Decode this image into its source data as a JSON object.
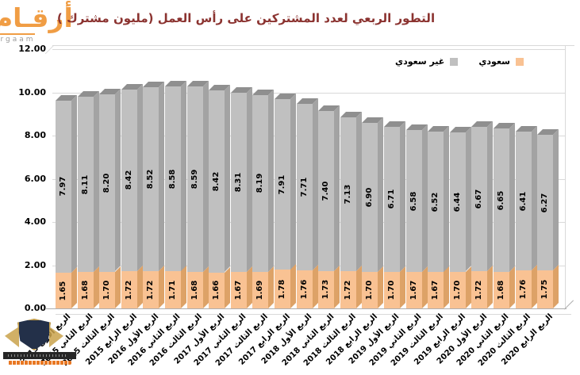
{
  "logo": {
    "arabic": "أرقـام",
    "latin": "argaam"
  },
  "header": {
    "title": "التطور الربعي لعدد المشتركين على رأس العمل (مليون مشترك )",
    "title_color": "#8b3330"
  },
  "legend": {
    "non_saudi_label": "غير سعودي",
    "saudi_label": "سعودي"
  },
  "colors": {
    "saudi_front": "#f9c293",
    "saudi_side": "#dda267",
    "saudi_top": "#e7b077",
    "non_saudi_front": "#c0c0c0",
    "non_saudi_side": "#a3a3a3",
    "non_saudi_top": "#8f8f8f",
    "gridline": "#d9d9d9",
    "baseline": "#aeaeae",
    "logo_orange": "#f09d44"
  },
  "chart_data": {
    "type": "bar",
    "stacked": true,
    "title": "التطور الربعي لعدد المشتركين على رأس العمل (مليون مشترك )",
    "categories": [
      "الربع الأول 2015",
      "الربع الثاني 2015",
      "الربع الثالث 2015",
      "الربع الرابع 2015",
      "الربع الأول 2016",
      "الربع الثاني 2016",
      "الربع الثالث 2016",
      "الربع الأول 2017",
      "الربع الثاني 2017",
      "الربع الثالث 2017",
      "الربع الرابع 2017",
      "الربع الأول 2018",
      "الربع الثاني 2018",
      "الربع الثالث 2018",
      "الربع الرابع 2018",
      "الربع الأول 2019",
      "الربع الثاني 2019",
      "الربع الثالث 2019",
      "الربع الرابع 2019",
      "الربع الأول 2020",
      "الربع الثاني 2020",
      "الربع الثالث 2020",
      "الربع الرابع 2020"
    ],
    "series": [
      {
        "name": "سعودي",
        "color": "#f9c293",
        "values": [
          1.65,
          1.68,
          1.7,
          1.72,
          1.72,
          1.71,
          1.68,
          1.66,
          1.67,
          1.69,
          1.78,
          1.76,
          1.73,
          1.72,
          1.7,
          1.7,
          1.67,
          1.67,
          1.7,
          1.72,
          1.68,
          1.76,
          1.75
        ]
      },
      {
        "name": "غير سعودي",
        "color": "#c0c0c0",
        "values": [
          7.97,
          8.11,
          8.2,
          8.42,
          8.52,
          8.58,
          8.59,
          8.42,
          8.31,
          8.19,
          7.91,
          7.71,
          7.4,
          7.13,
          6.9,
          6.71,
          6.58,
          6.52,
          6.44,
          6.67,
          6.65,
          6.41,
          6.27
        ]
      }
    ],
    "ylim": [
      0,
      12
    ],
    "yticks": [
      "0.00",
      "2.00",
      "4.00",
      "6.00",
      "8.00",
      "10.00",
      "12.00"
    ],
    "grid": true,
    "legend_position": "top-right",
    "value_labels": "rotated 90° inside each segment"
  }
}
